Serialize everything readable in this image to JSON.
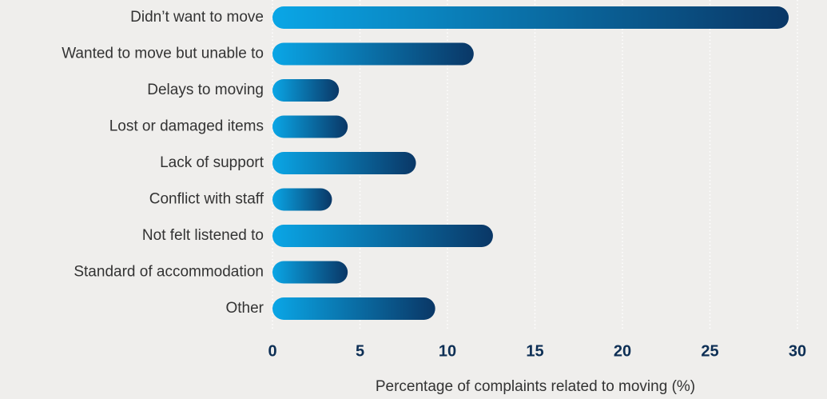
{
  "chart_data": {
    "type": "bar",
    "orientation": "horizontal",
    "categories": [
      "Didn’t want to move",
      "Wanted to move but unable to",
      "Delays to moving",
      "Lost or damaged items",
      "Lack of support",
      "Conflict with staff",
      "Not felt listened to",
      "Standard of accommodation",
      "Other"
    ],
    "values": [
      29.5,
      11.5,
      3.8,
      4.3,
      8.2,
      3.4,
      12.6,
      4.3,
      9.3
    ],
    "color": [
      "#0aa6e6",
      "#0a3766"
    ],
    "xlabel": "Percentage of complaints related to moving (%)",
    "xlim": [
      0,
      30
    ],
    "xticks": [
      0,
      5,
      10,
      15,
      20,
      25,
      30
    ],
    "grid": true
  }
}
